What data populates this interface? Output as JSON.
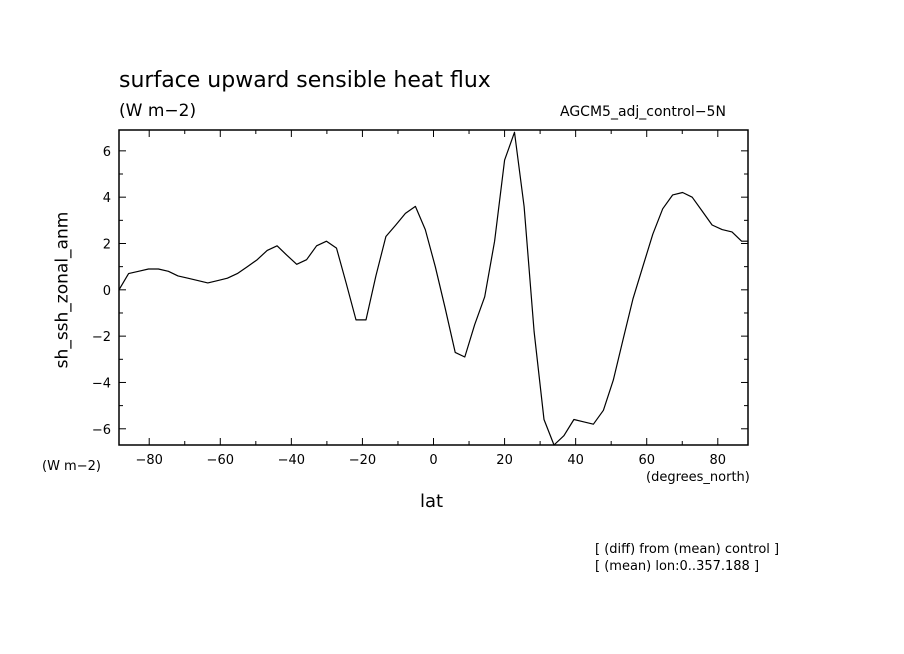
{
  "header": {
    "title": "surface upward sensible heat flux",
    "units": "(W m−2)",
    "run_name": "AGCM5_adj_control−5N"
  },
  "axes": {
    "ylabel": "sh_ssh_zonal_anm",
    "yunits_below": "(W m−2)",
    "xlabel": "lat",
    "xunits": "(degrees_north)"
  },
  "notes": {
    "line1": "[ (diff) from (mean) control ]",
    "line2": "[ (mean) lon:0..357.188 ]"
  },
  "chart_data": {
    "type": "line",
    "title": "surface upward sensible heat flux",
    "xlabel": "lat",
    "ylabel": "sh_ssh_zonal_anm",
    "xlim": [
      -88.5,
      88.5
    ],
    "ylim": [
      -6.7,
      6.9
    ],
    "xticks": [
      -80,
      -60,
      -40,
      -20,
      0,
      20,
      40,
      60,
      80
    ],
    "xtick_labels": [
      "−80",
      "−60",
      "−40",
      "−20",
      "0",
      "20",
      "40",
      "60",
      "80"
    ],
    "yticks": [
      -6,
      -4,
      -2,
      0,
      2,
      4,
      6
    ],
    "ytick_labels": [
      "−6",
      "−4",
      "−2",
      "0",
      "2",
      "4",
      "6"
    ],
    "grid": false,
    "series": [
      {
        "x": [
          -88.5,
          -85.8,
          -83.0,
          -80.2,
          -77.4,
          -74.6,
          -71.9,
          -69.1,
          -66.3,
          -63.5,
          -60.7,
          -58.0,
          -55.2,
          -52.4,
          -49.6,
          -46.8,
          -44.0,
          -41.3,
          -38.5,
          -35.7,
          -32.9,
          -30.1,
          -27.3,
          -24.6,
          -21.8,
          -19.0,
          -16.2,
          -13.4,
          -10.6,
          -7.9,
          -5.1,
          -2.3,
          0.5,
          3.3,
          6.1,
          8.8,
          11.6,
          14.4,
          17.2,
          20.0,
          22.8,
          25.5,
          28.3,
          31.1,
          33.9,
          36.7,
          39.5,
          42.2,
          45.0,
          47.8,
          50.6,
          53.4,
          56.1,
          58.9,
          61.7,
          64.5,
          67.3,
          70.1,
          72.8,
          75.6,
          78.4,
          81.2,
          84.0,
          86.7,
          88.5
        ],
        "y": [
          0.0,
          0.7,
          0.8,
          0.9,
          0.9,
          0.8,
          0.6,
          0.5,
          0.4,
          0.3,
          0.4,
          0.5,
          0.7,
          1.0,
          1.3,
          1.7,
          1.9,
          1.5,
          1.1,
          1.3,
          1.9,
          2.1,
          1.8,
          0.3,
          -1.3,
          -1.3,
          0.6,
          2.3,
          2.8,
          3.3,
          3.6,
          2.6,
          1.0,
          -0.8,
          -2.7,
          -2.9,
          -1.5,
          -0.3,
          2.1,
          5.6,
          6.8,
          3.6,
          -1.8,
          -5.6,
          -6.7,
          -6.3,
          -5.6,
          -5.7,
          -5.8,
          -5.2,
          -3.9,
          -2.1,
          -0.4,
          1.0,
          2.4,
          3.5,
          4.1,
          4.2,
          4.0,
          3.4,
          2.8,
          2.6,
          2.5,
          2.1,
          2.1
        ]
      }
    ]
  }
}
